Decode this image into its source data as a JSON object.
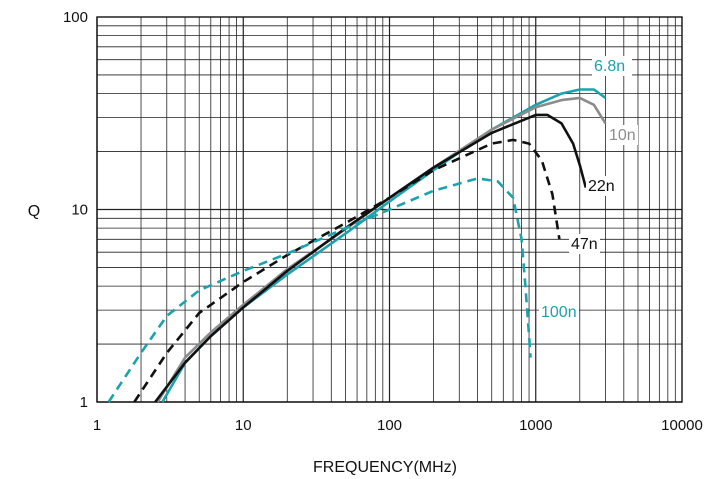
{
  "chart_data": {
    "type": "line",
    "title": "",
    "xlabel": "FREQUENCY(MHz)",
    "ylabel": "Q",
    "x_scale": "log",
    "y_scale": "log",
    "xlim": [
      1,
      10000
    ],
    "ylim": [
      1,
      100
    ],
    "x_ticks": [
      "1",
      "10",
      "100",
      "1000",
      "10000"
    ],
    "y_ticks": [
      "1",
      "10",
      "100"
    ],
    "grid": true,
    "series": [
      {
        "name": "6.8n",
        "color": "#1aa3ad",
        "dash": "solid",
        "x": [
          2.8,
          4,
          6,
          10,
          20,
          50,
          100,
          200,
          500,
          1000,
          1500,
          2000,
          2500,
          3000
        ],
        "y": [
          1,
          1.6,
          2.2,
          3.1,
          4.6,
          7.5,
          11,
          16,
          26,
          35,
          40,
          42,
          42,
          38
        ]
      },
      {
        "name": "10n",
        "color": "#8c8c8c",
        "dash": "solid",
        "x": [
          2.6,
          4,
          6,
          10,
          20,
          50,
          100,
          200,
          500,
          1000,
          1500,
          2000,
          2500,
          3000
        ],
        "y": [
          1,
          1.7,
          2.3,
          3.2,
          4.9,
          7.9,
          11.5,
          16.5,
          26,
          34,
          37,
          38,
          35,
          28
        ]
      },
      {
        "name": "22n",
        "color": "#111111",
        "dash": "solid",
        "x": [
          2.5,
          4,
          6,
          10,
          20,
          50,
          100,
          200,
          500,
          1000,
          1200,
          1500,
          1800,
          2000,
          2200
        ],
        "y": [
          1,
          1.6,
          2.2,
          3.1,
          4.8,
          8,
          11.5,
          16.5,
          25,
          31,
          31,
          28,
          22,
          17,
          13
        ]
      },
      {
        "name": "47n",
        "color": "#111111",
        "dash": "dashed",
        "x": [
          1.8,
          3,
          5,
          10,
          20,
          50,
          100,
          200,
          500,
          700,
          900,
          1100,
          1300,
          1450
        ],
        "y": [
          1,
          1.8,
          2.9,
          4.2,
          5.8,
          8.5,
          11.5,
          16,
          22,
          23,
          22,
          18,
          12,
          7
        ]
      },
      {
        "name": "100n",
        "color": "#1aa3ad",
        "dash": "dashed",
        "x": [
          1.2,
          2,
          3,
          5,
          10,
          20,
          50,
          100,
          200,
          400,
          550,
          700,
          800,
          850,
          900,
          920
        ],
        "y": [
          1,
          1.8,
          2.8,
          3.8,
          4.8,
          5.9,
          8,
          10,
          12.5,
          14.5,
          14,
          11.5,
          7,
          4,
          2.2,
          1.7
        ]
      }
    ]
  }
}
